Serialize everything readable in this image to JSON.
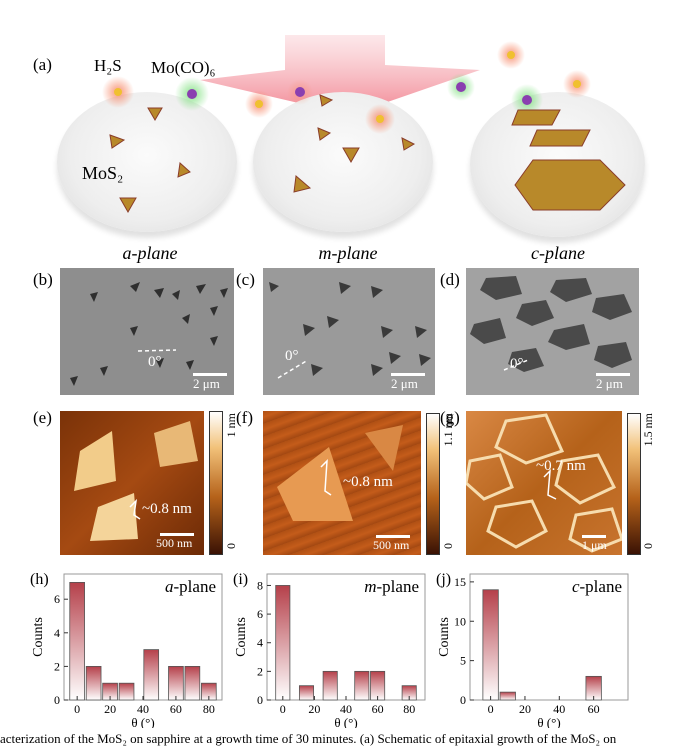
{
  "schematic": {
    "panel_label": "(a)",
    "h2s": "H₂S",
    "moco": "Mo(CO)₆",
    "mos2": "MoS₂",
    "planes": [
      "a-plane",
      "m-plane",
      "c-plane"
    ]
  },
  "sem": [
    {
      "label": "(b)",
      "angle": "0°",
      "scale": "2 μm"
    },
    {
      "label": "(c)",
      "angle": "0°",
      "scale": "2 μm"
    },
    {
      "label": "(d)",
      "angle": "0°",
      "scale": "2 μm"
    }
  ],
  "afm": [
    {
      "label": "(e)",
      "height": "~0.8 nm",
      "scale": "500 nm",
      "cbar_max": "1 nm",
      "cbar_min": "0"
    },
    {
      "label": "(f)",
      "height": "~0.8 nm",
      "scale": "500 nm",
      "cbar_max": "1.1 nm",
      "cbar_min": "0"
    },
    {
      "label": "(g)",
      "height": "~0.7 nm",
      "scale": "1 μm",
      "cbar_max": "1.5 nm",
      "cbar_min": "0"
    }
  ],
  "caption": "acterization of the MoS₂ on sapphire at a growth time of 30 minutes. (a) Schematic of epitaxial growth of the MoS₂ on",
  "colors": {
    "bar_top": "#b5404a",
    "bar_bottom": "#ffffff",
    "sem": "#8e8e8e",
    "afm_dark": "#5a1a04",
    "afm_light": "#f2c27a"
  },
  "chart_data": [
    {
      "type": "bar",
      "panel_label": "(h)",
      "title": "a-plane",
      "xlabel": "θ (°)",
      "ylabel": "Counts",
      "x": [
        0,
        10,
        20,
        30,
        45,
        60,
        70,
        80
      ],
      "values": [
        7,
        2,
        1,
        1,
        3,
        2,
        2,
        1
      ],
      "xlim": [
        -8,
        88
      ],
      "ylim": [
        0,
        7.5
      ],
      "xticks": [
        0,
        20,
        40,
        60,
        80
      ],
      "yticks": [
        0,
        2,
        4,
        6
      ]
    },
    {
      "type": "bar",
      "panel_label": "(i)",
      "title": "m-plane",
      "xlabel": "θ (°)",
      "ylabel": "Counts",
      "x": [
        0,
        15,
        30,
        50,
        60,
        80
      ],
      "values": [
        8,
        1,
        2,
        2,
        2,
        1
      ],
      "xlim": [
        -10,
        90
      ],
      "ylim": [
        0,
        8.8
      ],
      "xticks": [
        0,
        20,
        40,
        60,
        80
      ],
      "yticks": [
        0,
        2,
        4,
        6,
        8
      ]
    },
    {
      "type": "bar",
      "panel_label": "(j)",
      "title": "c-plane",
      "xlabel": "θ (°)",
      "ylabel": "Counts",
      "x": [
        0,
        10,
        60
      ],
      "values": [
        14,
        1,
        3
      ],
      "xlim": [
        -12,
        80
      ],
      "ylim": [
        0,
        16
      ],
      "xticks": [
        0,
        20,
        40,
        60
      ],
      "yticks": [
        0,
        5,
        10,
        15
      ]
    }
  ]
}
